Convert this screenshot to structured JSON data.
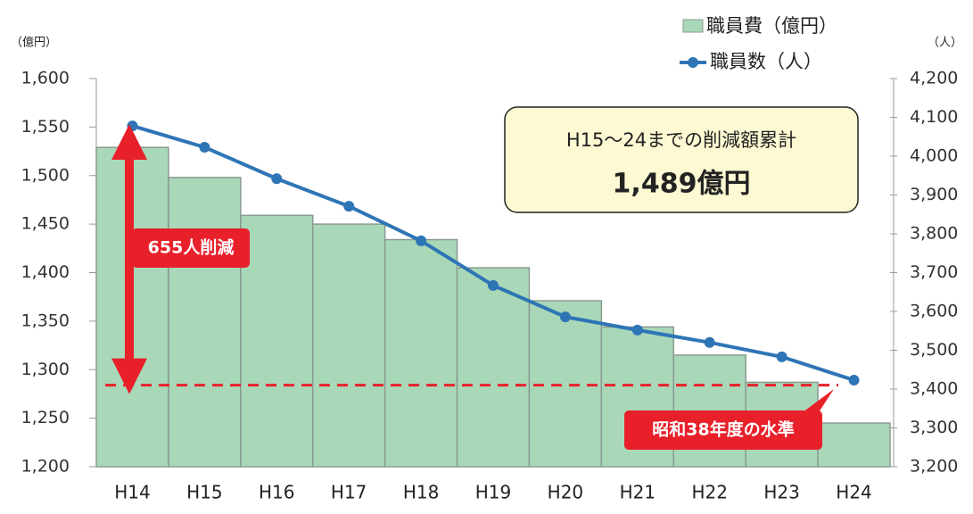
{
  "chart_data": {
    "type": "bar-line",
    "y_unit": "（億円）",
    "y2_unit": "（人）",
    "categories": [
      "H14",
      "H15",
      "H16",
      "H17",
      "H18",
      "H19",
      "H20",
      "H21",
      "H22",
      "H23",
      "H24"
    ],
    "series": [
      {
        "name": "職員費（億円）",
        "type": "bar",
        "color": "#a9d8b8",
        "values": [
          1529,
          1498,
          1459,
          1450,
          1434,
          1405,
          1371,
          1344,
          1315,
          1287,
          1245
        ]
      },
      {
        "name": "職員数（人）",
        "type": "line",
        "axis": "y2",
        "color": "#2e75b6",
        "values": [
          4078,
          4023,
          3942,
          3871,
          3782,
          3667,
          3586,
          3552,
          3520,
          3483,
          3423
        ]
      }
    ],
    "ylim": [
      1200,
      1600
    ],
    "yticks": [
      {
        "value": 1200,
        "label": "1,200"
      },
      {
        "value": 1250,
        "label": "1,250"
      },
      {
        "value": 1300,
        "label": "1,300"
      },
      {
        "value": 1350,
        "label": "1,350"
      },
      {
        "value": 1400,
        "label": "1,400"
      },
      {
        "value": 1450,
        "label": "1,450"
      },
      {
        "value": 1500,
        "label": "1,500"
      },
      {
        "value": 1550,
        "label": "1,550"
      },
      {
        "value": 1600,
        "label": "1,600"
      }
    ],
    "y2lim": [
      3200,
      4200
    ],
    "y2ticks": [
      {
        "value": 3200,
        "label": "3,200"
      },
      {
        "value": 3300,
        "label": "3,300"
      },
      {
        "value": 3400,
        "label": "3,400"
      },
      {
        "value": 3500,
        "label": "3,500"
      },
      {
        "value": 3600,
        "label": "3,600"
      },
      {
        "value": 3700,
        "label": "3,700"
      },
      {
        "value": 3800,
        "label": "3,800"
      },
      {
        "value": 3900,
        "label": "3,900"
      },
      {
        "value": 4000,
        "label": "4,000"
      },
      {
        "value": 4100,
        "label": "4,100"
      },
      {
        "value": 4200,
        "label": "4,200"
      }
    ],
    "reference_line": {
      "value": 1284,
      "label": "昭和38年度の水準",
      "color": "#e8202a"
    },
    "arrow_label": "655人削減",
    "summary_box": {
      "title": "H15～24までの削減額累計",
      "value": "1,489億円"
    }
  }
}
